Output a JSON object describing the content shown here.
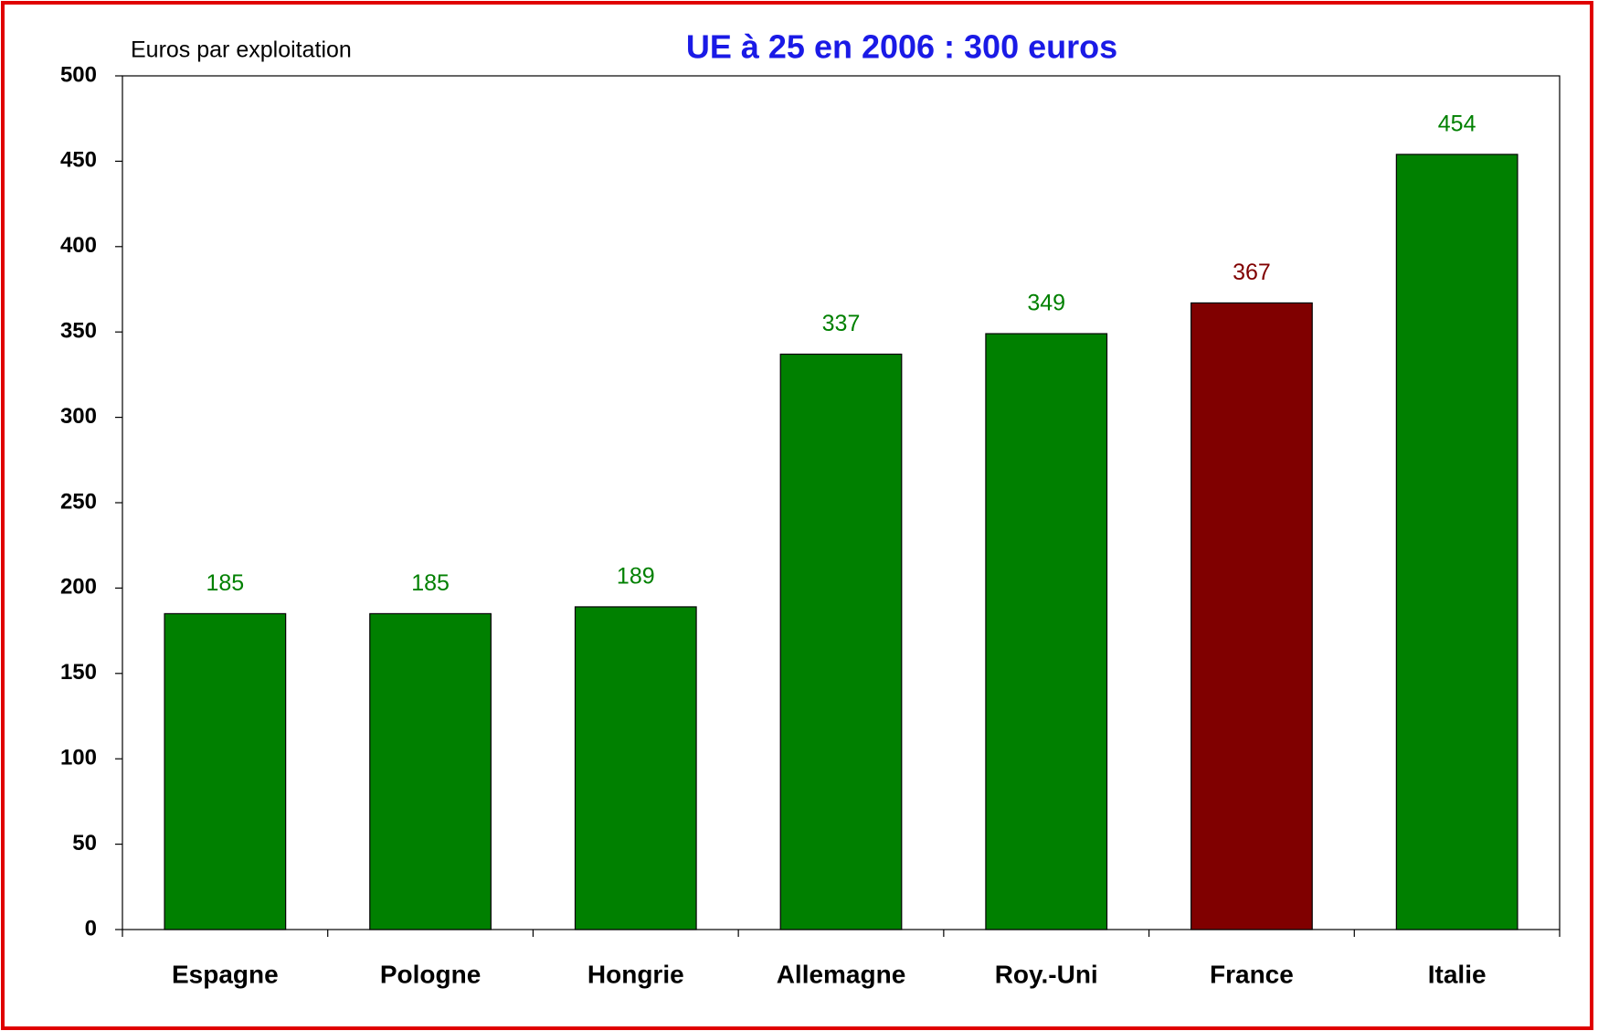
{
  "chart_data": {
    "type": "bar",
    "title": "UE à 25 en 2006 : 300 euros",
    "y_label": "Euros par exploitation",
    "categories": [
      "Espagne",
      "Pologne",
      "Hongrie",
      "Allemagne",
      "Roy.-Uni",
      "France",
      "Italie"
    ],
    "values": [
      185,
      185,
      189,
      337,
      349,
      367,
      454
    ],
    "colors": [
      "#008000",
      "#008000",
      "#008000",
      "#008000",
      "#008000",
      "#800000",
      "#008000"
    ],
    "ylim": [
      0,
      500
    ],
    "yticks": [
      0,
      50,
      100,
      150,
      200,
      250,
      300,
      350,
      400,
      450,
      500
    ]
  }
}
